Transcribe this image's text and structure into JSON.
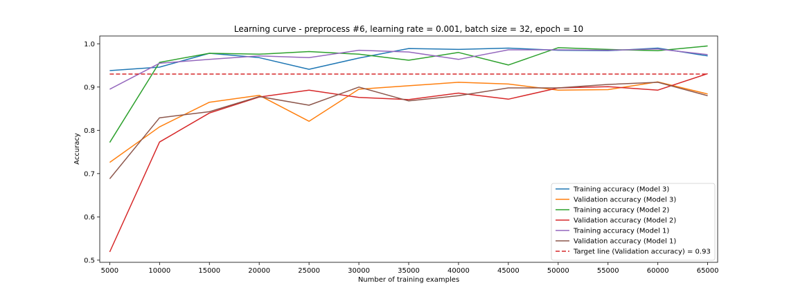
{
  "chart_data": {
    "type": "line",
    "title": "Learning curve - preprocess #6, learning rate = 0.001, batch size = 32, epoch = 10",
    "xlabel": "Number of training examples",
    "ylabel": "Accuracy",
    "x": [
      5000,
      10000,
      15000,
      20000,
      25000,
      30000,
      35000,
      40000,
      45000,
      50000,
      55000,
      60000,
      65000
    ],
    "xticks": [
      "5000",
      "10000",
      "15000",
      "20000",
      "25000",
      "30000",
      "35000",
      "40000",
      "45000",
      "50000",
      "55000",
      "60000",
      "65000"
    ],
    "yticks": [
      "0.5",
      "0.6",
      "0.7",
      "0.8",
      "0.9",
      "1.0"
    ],
    "xlim": [
      4000,
      66000
    ],
    "ylim": [
      0.495,
      1.018
    ],
    "grid": false,
    "legend_position": "lower-right",
    "series": [
      {
        "name": "Training accuracy (Model 3)",
        "color": "#1f77b4",
        "style": "solid",
        "values": [
          0.938,
          0.946,
          0.978,
          0.968,
          0.941,
          0.967,
          0.989,
          0.987,
          0.99,
          0.985,
          0.984,
          0.99,
          0.972
        ]
      },
      {
        "name": "Validation accuracy (Model 3)",
        "color": "#ff7f0e",
        "style": "solid",
        "values": [
          0.726,
          0.808,
          0.865,
          0.881,
          0.821,
          0.895,
          0.903,
          0.911,
          0.907,
          0.893,
          0.894,
          0.912,
          0.884
        ]
      },
      {
        "name": "Training accuracy (Model 2)",
        "color": "#2ca02c",
        "style": "solid",
        "values": [
          0.772,
          0.957,
          0.978,
          0.976,
          0.982,
          0.976,
          0.962,
          0.98,
          0.951,
          0.991,
          0.987,
          0.984,
          0.995
        ]
      },
      {
        "name": "Validation accuracy (Model 2)",
        "color": "#d62728",
        "style": "solid",
        "values": [
          0.519,
          0.773,
          0.84,
          0.877,
          0.893,
          0.876,
          0.871,
          0.886,
          0.872,
          0.898,
          0.901,
          0.893,
          0.931
        ]
      },
      {
        "name": "Training accuracy (Model 1)",
        "color": "#9467bd",
        "style": "solid",
        "values": [
          0.895,
          0.955,
          0.964,
          0.972,
          0.968,
          0.985,
          0.981,
          0.964,
          0.986,
          0.986,
          0.985,
          0.988,
          0.975
        ]
      },
      {
        "name": "Validation accuracy (Model 1)",
        "color": "#8c564b",
        "style": "solid",
        "values": [
          0.688,
          0.829,
          0.843,
          0.878,
          0.858,
          0.9,
          0.868,
          0.88,
          0.898,
          0.898,
          0.906,
          0.911,
          0.88
        ]
      },
      {
        "name": "Target line (Validation accuracy) = 0.93",
        "color": "#d62728",
        "style": "dashed",
        "values": [
          0.93,
          0.93,
          0.93,
          0.93,
          0.93,
          0.93,
          0.93,
          0.93,
          0.93,
          0.93,
          0.93,
          0.93,
          0.93
        ]
      }
    ]
  }
}
